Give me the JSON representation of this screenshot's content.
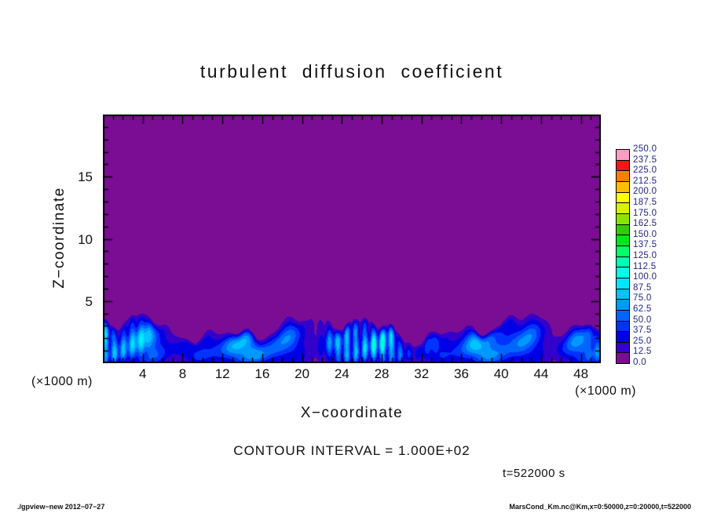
{
  "chart_data": {
    "type": "heatmap",
    "title": "turbulent diffusion coefficient",
    "xlabel": "X−coordinate",
    "ylabel": "Z−coordinate",
    "x_units": "(×1000 m)",
    "y_units": "(×1000 m)",
    "x_range": [
      0,
      50
    ],
    "z_range": [
      0,
      20
    ],
    "x_ticks": [
      4,
      8,
      12,
      16,
      20,
      24,
      28,
      32,
      36,
      40,
      44,
      48
    ],
    "x_minor_tick_step": 1,
    "z_ticks": [
      5,
      10,
      15
    ],
    "z_minor_tick_step": 1,
    "levels": [
      0.0,
      12.5,
      25.0,
      37.5,
      50.0,
      62.5,
      75.0,
      87.5,
      100.0,
      112.5,
      125.0,
      137.5,
      150.0,
      162.5,
      175.0,
      187.5,
      200.0,
      212.5,
      225.0,
      237.5,
      250.0
    ],
    "colorbar_labels": [
      "250.0",
      "237.5",
      "225.0",
      "212.5",
      "200.0",
      "187.5",
      "175.0",
      "162.5",
      "150.0",
      "137.5",
      "125.0",
      "112.5",
      "100.0",
      "87.5",
      "75.0",
      "62.5",
      "50.0",
      "37.5",
      "25.0",
      "12.5",
      "0.0"
    ],
    "palette_bottom_to_top": [
      "#7a0d93",
      "#3300cc",
      "#0000e6",
      "#0033ff",
      "#0066ff",
      "#0099ff",
      "#00c3ff",
      "#00e6ff",
      "#00ffe6",
      "#00ffb3",
      "#00ff66",
      "#00e619",
      "#33cc00",
      "#8ae600",
      "#d9f200",
      "#ffff00",
      "#ffbf00",
      "#ff8000",
      "#f01919",
      "#ff9ec2"
    ],
    "legend_position": "right",
    "grid": false,
    "field_summary": "Interior uniform in lowest band 0–12.5 (purple); turbulent boundary layer below z ≈ 2–5 (×1000 m) with values ≈ 12.5–110 (blues to cyan), wavy entrainment interface with dark-blue rim",
    "field_model": {
      "s_offset": 0.12,
      "bl_height_base": 3.1,
      "bl_waves": [
        [
          0.75,
          0.3,
          1.2
        ],
        [
          0.5,
          0.83,
          4.0
        ],
        [
          0.32,
          1.7,
          2.1
        ],
        [
          0.16,
          3.1,
          0.4
        ]
      ],
      "k_max_base": 52,
      "k_max_waves": [
        [
          20,
          0.52,
          0.3
        ],
        [
          14,
          1.31,
          2.0
        ]
      ],
      "texture": {
        "amp": 0.2,
        "fx": 1.3,
        "fz": 2.2,
        "ph": 1.0
      },
      "streaks": {
        "amp": 0.45,
        "fx": 7.0,
        "env_f": 0.22,
        "env_ph": 2.0
      }
    }
  },
  "annotations": {
    "contour_interval": "CONTOUR INTERVAL = 1.000E+02",
    "time": "t=522000 s"
  },
  "footer": {
    "left": "./gpview−new  2012−07−27",
    "right": "MarsCond_Km.nc@Km,x=0:50000,z=0:20000,t=522000"
  }
}
